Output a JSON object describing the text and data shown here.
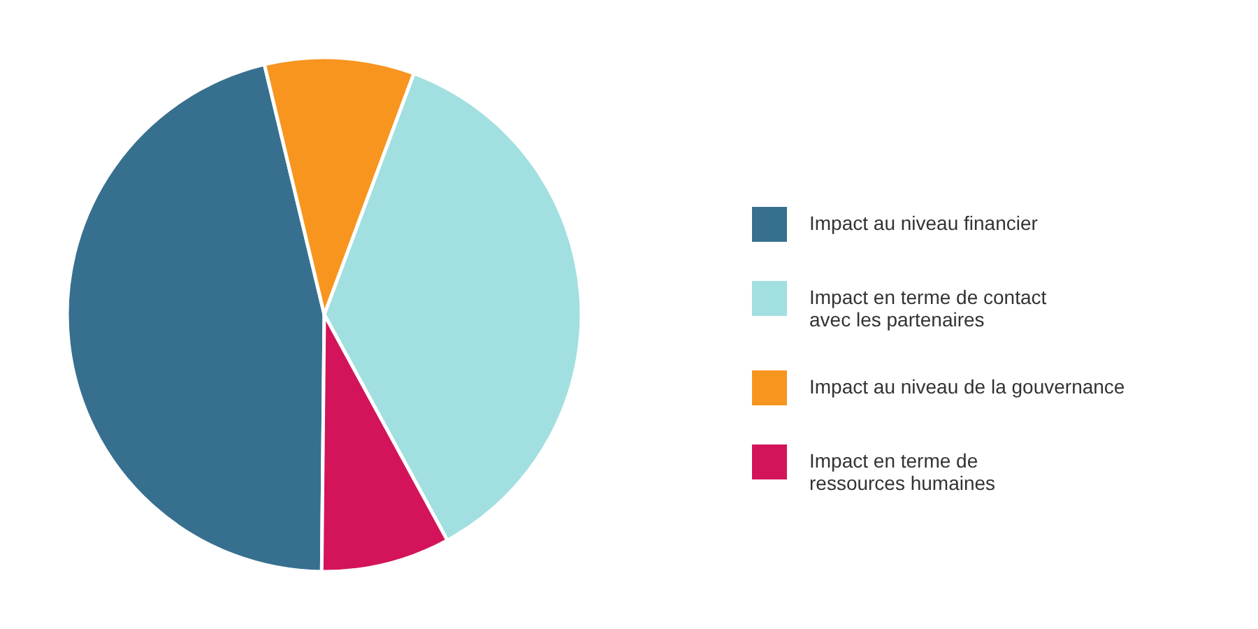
{
  "chart_data": {
    "type": "pie",
    "categories": [
      "Impact au niveau financier",
      "Impact en terme de contact avec les partenaires",
      "Impact au niveau de la gouvernance",
      "Impact en terme de ressources humaines"
    ],
    "values": [
      46.1,
      36.4,
      9.4,
      8.1
    ],
    "colors": [
      "#37708f",
      "#a2dfe0",
      "#f7951f",
      "#d3145a"
    ],
    "legend": "right"
  }
}
